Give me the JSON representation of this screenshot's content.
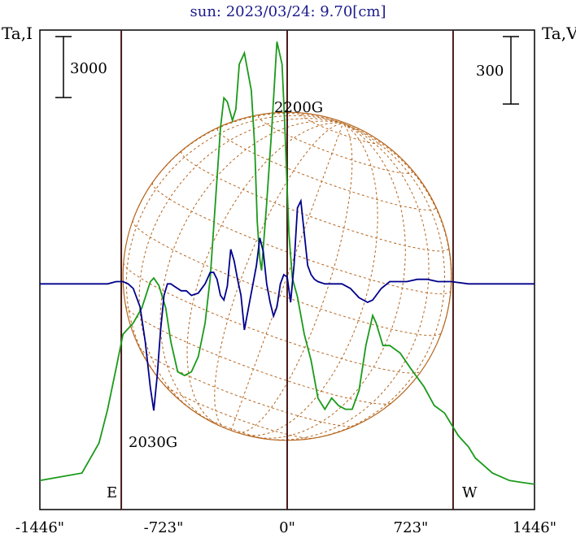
{
  "chart_data": {
    "type": "line",
    "title": "sun: 2023/03/24: 9.70[cm]",
    "left_axis_label": "Ta,I",
    "right_axis_label": "Ta,V",
    "left_scale_bar": "3000",
    "right_scale_bar": "300",
    "xticks": [
      {
        "x": -1446,
        "label": "-1446\""
      },
      {
        "x": -723,
        "label": "-723\""
      },
      {
        "x": 0,
        "label": "0\""
      },
      {
        "x": 723,
        "label": "723\""
      },
      {
        "x": 1446,
        "label": "1446\""
      }
    ],
    "xlim": [
      -1446,
      1446
    ],
    "vertical_lines": [
      -970,
      0,
      970
    ],
    "limb_labels": {
      "east": "E",
      "west": "W"
    },
    "annotations": [
      {
        "text": "2200G",
        "x": 90,
        "y_I": 10100
      },
      {
        "text": "2030G",
        "x": -780,
        "y_I": 2550
      }
    ],
    "disk": {
      "radius_arcsec": 960
    },
    "colors": {
      "intensity": "#1a9a1a",
      "polarization": "#00008b",
      "disk": "#b5651d",
      "frame": "#000000",
      "vlines": "#4a1a1a",
      "title": "#1a1a8c"
    },
    "series": [
      {
        "name": "I",
        "axis": "left",
        "ylim": [
          0,
          13000
        ],
        "x": [
          -1446,
          -1200,
          -1100,
          -1050,
          -1000,
          -960,
          -900,
          -850,
          -800,
          -780,
          -750,
          -710,
          -680,
          -640,
          -600,
          -560,
          -520,
          -480,
          -450,
          -420,
          -390,
          -370,
          -350,
          -320,
          -300,
          -280,
          -250,
          -210,
          -190,
          -175,
          -160,
          -150,
          -120,
          -90,
          -60,
          -30,
          -15,
          10,
          30,
          60,
          100,
          140,
          180,
          220,
          260,
          300,
          340,
          380,
          420,
          460,
          500,
          520,
          560,
          600,
          660,
          720,
          800,
          860,
          920,
          960,
          1000,
          1060,
          1100,
          1150,
          1200,
          1300,
          1446
        ],
        "values": [
          600,
          800,
          1600,
          2500,
          3600,
          4500,
          4800,
          5200,
          5900,
          6000,
          5800,
          5200,
          4300,
          3500,
          3400,
          3500,
          3900,
          4800,
          6000,
          8000,
          10000,
          10800,
          10700,
          10200,
          10500,
          11700,
          12000,
          11000,
          9500,
          7500,
          6500,
          6200,
          8000,
          10000,
          12300,
          11700,
          10200,
          7200,
          6000,
          5500,
          4500,
          3800,
          2800,
          2500,
          2800,
          2600,
          2500,
          2500,
          3000,
          4200,
          5000,
          4800,
          4200,
          4200,
          4000,
          3600,
          3100,
          2600,
          2400,
          2100,
          1800,
          1500,
          1200,
          1000,
          800,
          600,
          500
        ]
      },
      {
        "name": "V",
        "axis": "right",
        "ylim": [
          -800,
          400
        ],
        "x": [
          -1446,
          -1200,
          -1100,
          -1050,
          -1000,
          -960,
          -930,
          -900,
          -860,
          -830,
          -800,
          -780,
          -760,
          -740,
          -720,
          -700,
          -680,
          -660,
          -640,
          -620,
          -590,
          -560,
          -520,
          -480,
          -450,
          -430,
          -410,
          -390,
          -370,
          -350,
          -330,
          -310,
          -290,
          -270,
          -250,
          -220,
          -200,
          -180,
          -160,
          -140,
          -120,
          -100,
          -80,
          -60,
          -40,
          -20,
          0,
          20,
          40,
          60,
          80,
          100,
          120,
          140,
          160,
          180,
          220,
          270,
          320,
          370,
          420,
          470,
          500,
          520,
          550,
          600,
          650,
          700,
          760,
          820,
          880,
          960,
          1060,
          1200,
          1446
        ],
        "values": [
          0,
          0,
          0,
          0,
          10,
          10,
          0,
          -20,
          -100,
          -250,
          -450,
          -550,
          -400,
          -200,
          -50,
          0,
          0,
          -10,
          -20,
          -30,
          -30,
          -50,
          -40,
          0,
          50,
          50,
          20,
          -50,
          -70,
          -10,
          150,
          100,
          20,
          -50,
          -200,
          -80,
          0,
          80,
          200,
          140,
          0,
          -80,
          -140,
          -100,
          0,
          40,
          30,
          -80,
          80,
          330,
          360,
          220,
          80,
          40,
          20,
          10,
          0,
          0,
          0,
          -20,
          -60,
          -80,
          -70,
          -50,
          -20,
          10,
          10,
          10,
          20,
          20,
          10,
          10,
          0,
          0,
          0
        ]
      }
    ]
  }
}
